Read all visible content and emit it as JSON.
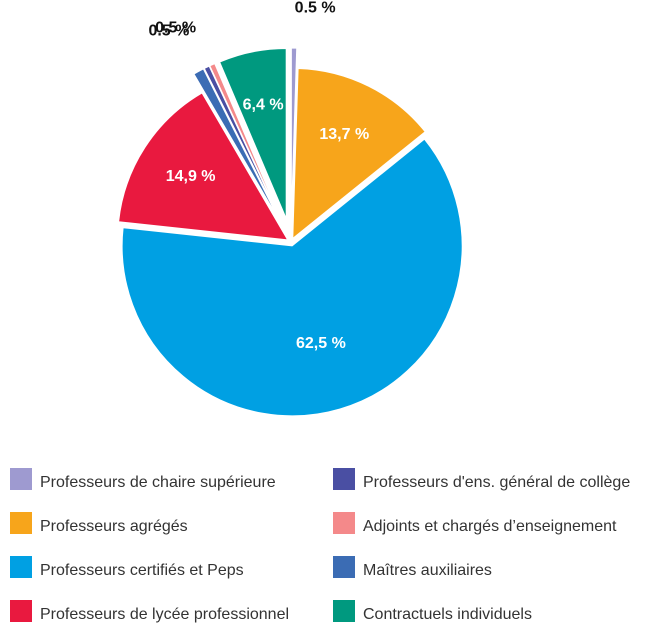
{
  "chart_data": {
    "type": "pie",
    "categories": [
      "Professeurs de chaire supérieure",
      "Professeurs agrégés",
      "Professeurs certifiés et Peps",
      "Professeurs de lycée professionnel",
      "Maîtres auxiliaires",
      "Professeurs d'ens. général de collège",
      "Adjoints et chargés d’enseignement",
      "Contractuels individuels"
    ],
    "values": [
      0.5,
      13.7,
      62.5,
      14.9,
      1,
      0.5,
      0.5,
      6.4
    ],
    "value_labels": [
      "0.5 %",
      "13,7 %",
      "62,5 %",
      "14,9 %",
      null,
      "0.5 %",
      "0.5 %",
      "6,4 %"
    ],
    "colors": [
      "#9e9ad0",
      "#f7a51b",
      "#00a0e3",
      "#e9193f",
      "#3b6cb4",
      "#4a4fa3",
      "#f4898a",
      "#00997f"
    ],
    "legend": "bottom"
  }
}
